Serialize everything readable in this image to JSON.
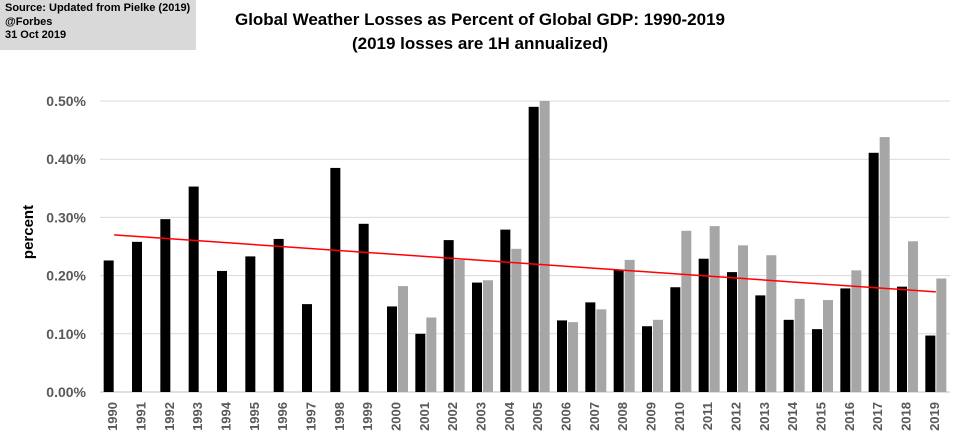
{
  "source": {
    "line1": "Source: Updated from Pielke (2019)",
    "line2": "@Forbes",
    "line3": "31 Oct 2019"
  },
  "chart_data": {
    "type": "bar",
    "title": "Global Weather Losses as Percent of Global GDP: 1990-2019",
    "subtitle": "(2019 losses are 1H annualized)",
    "xlabel": "",
    "ylabel": "percent",
    "ylim": [
      0,
      0.5
    ],
    "yticks": [
      "0.00%",
      "0.10%",
      "0.20%",
      "0.30%",
      "0.40%",
      "0.50%"
    ],
    "grid": true,
    "legend": "none",
    "categories": [
      "1990",
      "1991",
      "1992",
      "1993",
      "1994",
      "1995",
      "1996",
      "1997",
      "1998",
      "1999",
      "2000",
      "2001",
      "2002",
      "2003",
      "2004",
      "2005",
      "2006",
      "2007",
      "2008",
      "2009",
      "2010",
      "2011",
      "2012",
      "2013",
      "2014",
      "2015",
      "2016",
      "2017",
      "2018",
      "2019"
    ],
    "series": [
      {
        "color": "#000000",
        "values": [
          0.226,
          0.258,
          0.297,
          0.353,
          0.208,
          0.233,
          0.263,
          0.151,
          0.385,
          0.289,
          0.147,
          0.1,
          0.261,
          0.188,
          0.279,
          0.49,
          0.123,
          0.154,
          0.21,
          0.113,
          0.18,
          0.229,
          0.206,
          0.166,
          0.124,
          0.108,
          0.178,
          0.411,
          0.181,
          0.097
        ]
      },
      {
        "color": "#a6a6a6",
        "values": [
          null,
          null,
          null,
          null,
          null,
          null,
          null,
          null,
          null,
          null,
          0.182,
          0.128,
          0.227,
          0.192,
          0.246,
          0.5,
          0.12,
          0.142,
          0.227,
          0.124,
          0.277,
          0.285,
          0.252,
          0.235,
          0.16,
          0.158,
          0.209,
          0.438,
          0.259,
          0.195
        ]
      }
    ],
    "trendline": {
      "color": "#ff0000",
      "start": {
        "x": "1990",
        "y": 0.27
      },
      "end": {
        "x": "2019",
        "y": 0.172
      }
    }
  }
}
